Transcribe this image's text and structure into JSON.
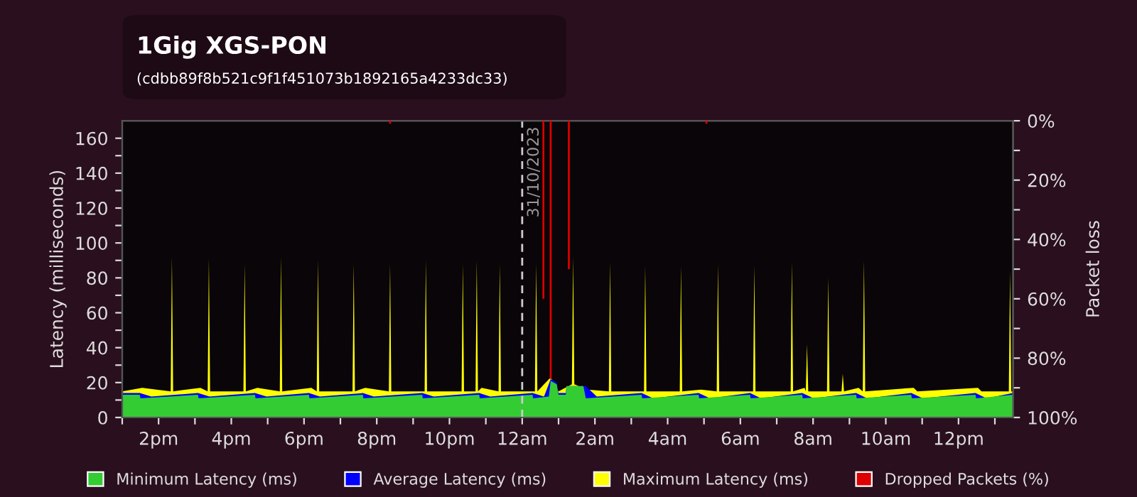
{
  "chart_data": {
    "type": "area",
    "title": "1Gig XGS-PON",
    "subtitle": "(cdbb89f8b521c9f1f451073b1892165a4233dc33)",
    "ylabel": "Latency (milliseconds)",
    "y2label": "Packet loss",
    "xlim": [
      "2023-10-30T13:00",
      "2023-10-31T13:30"
    ],
    "xticks": [
      {
        "value": "2023-10-30T13:00",
        "label": null
      },
      {
        "value": "2023-10-30T14:00",
        "label": "2pm"
      },
      {
        "value": "2023-10-30T15:00",
        "label": null
      },
      {
        "value": "2023-10-30T16:00",
        "label": "4pm"
      },
      {
        "value": "2023-10-30T17:00",
        "label": null
      },
      {
        "value": "2023-10-30T18:00",
        "label": "6pm"
      },
      {
        "value": "2023-10-30T19:00",
        "label": null
      },
      {
        "value": "2023-10-30T20:00",
        "label": "8pm"
      },
      {
        "value": "2023-10-30T21:00",
        "label": null
      },
      {
        "value": "2023-10-30T22:00",
        "label": "10pm"
      },
      {
        "value": "2023-10-30T23:00",
        "label": null
      },
      {
        "value": "2023-10-31T00:00",
        "label": "12am"
      },
      {
        "value": "2023-10-31T01:00",
        "label": null
      },
      {
        "value": "2023-10-31T02:00",
        "label": "2am"
      },
      {
        "value": "2023-10-31T03:00",
        "label": null
      },
      {
        "value": "2023-10-31T04:00",
        "label": "4am"
      },
      {
        "value": "2023-10-31T05:00",
        "label": null
      },
      {
        "value": "2023-10-31T06:00",
        "label": "6am"
      },
      {
        "value": "2023-10-31T07:00",
        "label": null
      },
      {
        "value": "2023-10-31T08:00",
        "label": "8am"
      },
      {
        "value": "2023-10-31T09:00",
        "label": null
      },
      {
        "value": "2023-10-31T10:00",
        "label": "10am"
      },
      {
        "value": "2023-10-31T11:00",
        "label": null
      },
      {
        "value": "2023-10-31T12:00",
        "label": "12pm"
      },
      {
        "value": "2023-10-31T13:00",
        "label": null
      }
    ],
    "ylim": [
      0,
      170
    ],
    "yticks": [
      0,
      {
        "value": 10,
        "label": null
      },
      20,
      {
        "value": 30,
        "label": null
      },
      40,
      {
        "value": 50,
        "label": null
      },
      60,
      {
        "value": 70,
        "label": null
      },
      80,
      {
        "value": 90,
        "label": null
      },
      100,
      {
        "value": 110,
        "label": null
      },
      120,
      {
        "value": 130,
        "label": null
      },
      140,
      {
        "value": 150,
        "label": null
      },
      160
    ],
    "y2lim": [
      100,
      0
    ],
    "y2ticks": [
      {
        "value": 0,
        "label": "0%"
      },
      {
        "value": 10,
        "label": null
      },
      {
        "value": 20,
        "label": "20%"
      },
      {
        "value": 30,
        "label": null
      },
      {
        "value": 40,
        "label": "40%"
      },
      {
        "value": 50,
        "label": null
      },
      {
        "value": 60,
        "label": "60%"
      },
      {
        "value": 70,
        "label": null
      },
      {
        "value": 80,
        "label": "80%"
      },
      {
        "value": 90,
        "label": null
      },
      {
        "value": 100,
        "label": "100%"
      }
    ],
    "ref_lines": [
      {
        "axis": "x",
        "value": "2023-10-31T00:00",
        "label": "31/10/2023",
        "color": "#cccccc",
        "line_style": "dashed"
      }
    ],
    "legend": "bottom",
    "series": [
      {
        "name": "Maximum Latency (ms)",
        "color": "#ffff00",
        "x": [
          "2023-10-30T13:00",
          "2023-10-30T13:33",
          "2023-10-30T14:20",
          "2023-10-30T14:22",
          "2023-10-30T14:24",
          "2023-10-30T15:09",
          "2023-10-30T15:21",
          "2023-10-30T15:23",
          "2023-10-30T15:25",
          "2023-10-30T16:20",
          "2023-10-30T16:22",
          "2023-10-30T16:24",
          "2023-10-30T16:43",
          "2023-10-30T17:20",
          "2023-10-30T17:22",
          "2023-10-30T17:24",
          "2023-10-30T18:12",
          "2023-10-30T18:21",
          "2023-10-30T18:23",
          "2023-10-30T18:25",
          "2023-10-30T19:20",
          "2023-10-30T19:22",
          "2023-10-30T19:24",
          "2023-10-30T19:41",
          "2023-10-30T20:20",
          "2023-10-30T20:22",
          "2023-10-30T20:24",
          "2023-10-30T21:19",
          "2023-10-30T21:21",
          "2023-10-30T21:23",
          "2023-10-30T22:20",
          "2023-10-30T22:22",
          "2023-10-30T22:24",
          "2023-10-30T22:43",
          "2023-10-30T22:45",
          "2023-10-30T22:47",
          "2023-10-30T22:53",
          "2023-10-30T23:21",
          "2023-10-30T23:23",
          "2023-10-30T23:25",
          "2023-10-31T00:21",
          "2023-10-31T00:23",
          "2023-10-31T00:25",
          "2023-10-31T00:47",
          "2023-10-31T01:00",
          "2023-10-31T01:22",
          "2023-10-31T01:24",
          "2023-10-31T01:26",
          "2023-10-31T01:48",
          "2023-10-31T02:23",
          "2023-10-31T02:25",
          "2023-10-31T02:27",
          "2023-10-31T03:21",
          "2023-10-31T03:23",
          "2023-10-31T03:25",
          "2023-10-31T04:20",
          "2023-10-31T04:22",
          "2023-10-31T04:24",
          "2023-10-31T04:55",
          "2023-10-31T05:21",
          "2023-10-31T05:23",
          "2023-10-31T05:25",
          "2023-10-31T06:21",
          "2023-10-31T06:23",
          "2023-10-31T06:25",
          "2023-10-31T07:23",
          "2023-10-31T07:25",
          "2023-10-31T07:27",
          "2023-10-31T07:46",
          "2023-10-31T07:48",
          "2023-10-31T07:50",
          "2023-10-31T07:52",
          "2023-10-31T08:23",
          "2023-10-31T08:25",
          "2023-10-31T08:27",
          "2023-10-31T08:47",
          "2023-10-31T08:49",
          "2023-10-31T08:51",
          "2023-10-31T09:15",
          "2023-10-31T09:22",
          "2023-10-31T09:24",
          "2023-10-31T09:26",
          "2023-10-31T10:46",
          "2023-10-31T10:52",
          "2023-10-31T12:32",
          "2023-10-31T12:38",
          "2023-10-31T13:23",
          "2023-10-31T13:25",
          "2023-10-31T13:27",
          "2023-10-31T13:30"
        ],
        "values": [
          15,
          17,
          15,
          92,
          15,
          17,
          15,
          91,
          15,
          15,
          88,
          15,
          17,
          15,
          92,
          15,
          17,
          15,
          90,
          15,
          15,
          88,
          15,
          17,
          15,
          88,
          15,
          15,
          90,
          15,
          15,
          88,
          15,
          15,
          90,
          15,
          17,
          15,
          88,
          15,
          15,
          88,
          15,
          23,
          15,
          19,
          92,
          19,
          16,
          15,
          89,
          15,
          15,
          87,
          15,
          15,
          87,
          15,
          16,
          15,
          88,
          15,
          15,
          87,
          15,
          15,
          89,
          15,
          17,
          15,
          42,
          15,
          15,
          80,
          15,
          15,
          25,
          15,
          17,
          15,
          90,
          15,
          17,
          15,
          17,
          15,
          15,
          84,
          15,
          15
        ]
      },
      {
        "name": "Average Latency (ms)",
        "color": "#0000ff",
        "x": [
          "2023-10-30T13:00",
          "2023-10-30T13:29",
          "2023-10-30T13:48",
          "2023-10-30T15:05",
          "2023-10-30T15:24",
          "2023-10-30T16:39",
          "2023-10-30T16:58",
          "2023-10-30T18:08",
          "2023-10-30T18:26",
          "2023-10-30T19:37",
          "2023-10-30T19:55",
          "2023-10-30T21:15",
          "2023-10-30T21:34",
          "2023-10-30T22:49",
          "2023-10-30T23:07",
          "2023-10-31T00:17",
          "2023-10-31T00:36",
          "2023-10-31T00:47",
          "2023-10-31T00:57",
          "2023-10-31T01:00",
          "2023-10-31T01:12",
          "2023-10-31T01:13",
          "2023-10-31T01:45",
          "2023-10-31T02:03",
          "2023-10-31T03:17",
          "2023-10-31T03:36",
          "2023-10-31T04:51",
          "2023-10-31T05:10",
          "2023-10-31T06:16",
          "2023-10-31T06:34",
          "2023-10-31T07:42",
          "2023-10-31T08:01",
          "2023-10-31T09:11",
          "2023-10-31T09:29",
          "2023-10-31T10:42",
          "2023-10-31T11:01",
          "2023-10-31T12:28",
          "2023-10-31T12:46",
          "2023-10-31T13:30"
        ],
        "values": [
          14,
          14,
          12,
          14,
          12,
          14,
          12,
          14,
          12,
          14,
          12,
          14,
          12,
          14,
          12,
          14,
          12,
          22,
          20,
          14,
          14,
          18,
          18,
          12,
          14,
          11,
          14,
          11,
          14,
          11,
          14,
          11,
          14,
          11,
          14,
          11,
          14,
          11,
          14
        ]
      },
      {
        "name": "Minimum Latency (ms)",
        "color": "#33cc33",
        "x": [
          "2023-10-30T13:00",
          "2023-10-30T13:29",
          "2023-10-30T13:30",
          "2023-10-30T15:05",
          "2023-10-30T15:06",
          "2023-10-30T16:39",
          "2023-10-30T16:40",
          "2023-10-30T18:08",
          "2023-10-30T18:09",
          "2023-10-30T19:37",
          "2023-10-30T19:38",
          "2023-10-30T21:15",
          "2023-10-30T21:16",
          "2023-10-30T22:49",
          "2023-10-30T22:50",
          "2023-10-31T00:17",
          "2023-10-31T00:18",
          "2023-10-31T00:44",
          "2023-10-31T00:47",
          "2023-10-31T00:57",
          "2023-10-31T01:00",
          "2023-10-31T01:12",
          "2023-10-31T01:13",
          "2023-10-31T01:41",
          "2023-10-31T01:45",
          "2023-10-31T03:17",
          "2023-10-31T03:18",
          "2023-10-31T04:51",
          "2023-10-31T04:52",
          "2023-10-31T06:16",
          "2023-10-31T06:17",
          "2023-10-31T07:42",
          "2023-10-31T07:43",
          "2023-10-31T09:11",
          "2023-10-31T09:12",
          "2023-10-31T10:42",
          "2023-10-31T10:43",
          "2023-10-31T12:28",
          "2023-10-31T12:29",
          "2023-10-31T13:30"
        ],
        "values": [
          13,
          13,
          11,
          13,
          11,
          13,
          11,
          13,
          11,
          13,
          11,
          13,
          11,
          13,
          11,
          13,
          11,
          12,
          21,
          19,
          13,
          13,
          18,
          18,
          11,
          13,
          11,
          13,
          11,
          13,
          11,
          13,
          11,
          13,
          11,
          13,
          11,
          13,
          11,
          13
        ]
      },
      {
        "name": "Dropped Packets (%)",
        "type": "bar",
        "axis": "y2",
        "color": "#dd0000",
        "x": [
          "2023-10-30T20:22",
          "2023-10-31T00:35",
          "2023-10-31T00:47",
          "2023-10-31T01:17",
          "2023-10-31T05:04"
        ],
        "values": [
          1,
          60,
          87,
          50,
          1
        ]
      }
    ]
  }
}
